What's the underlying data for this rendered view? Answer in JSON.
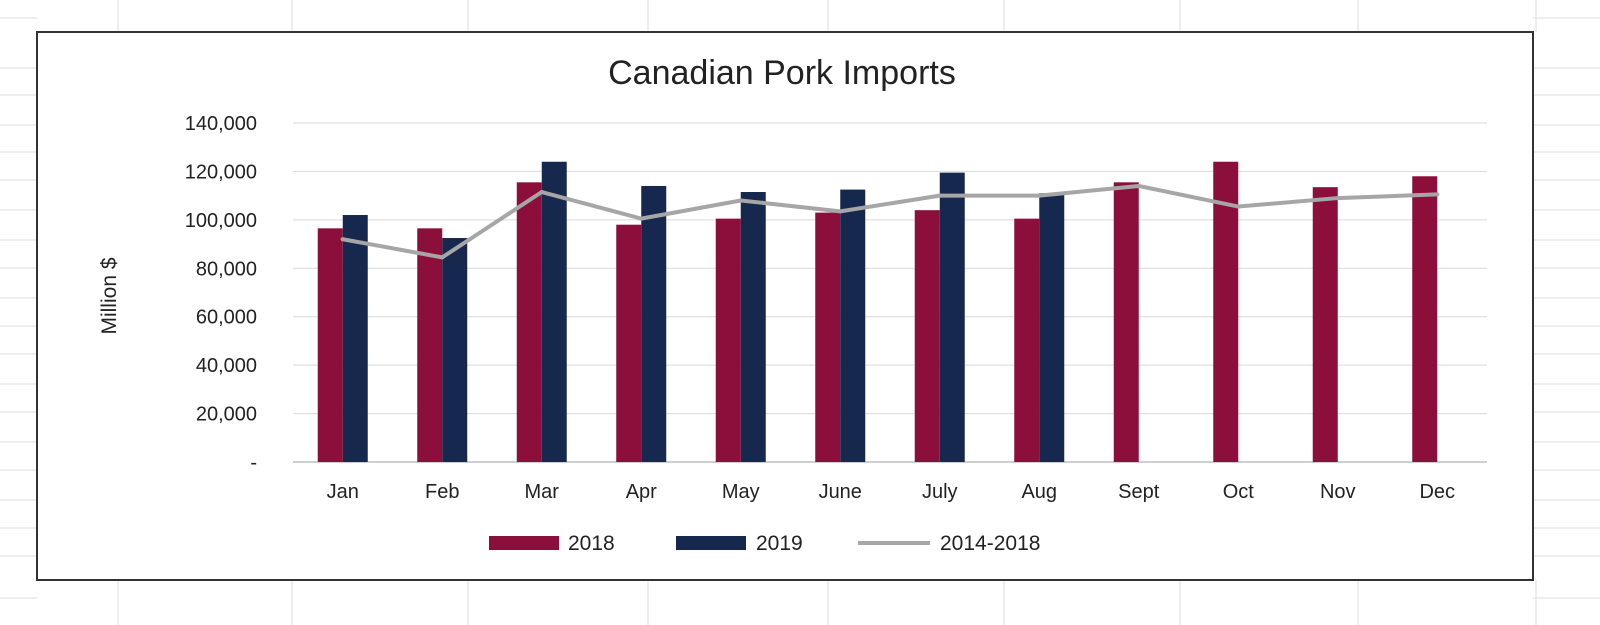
{
  "chart_data": {
    "type": "bar",
    "title": "Canadian Pork Imports",
    "xlabel": "",
    "ylabel": "Million $",
    "categories": [
      "Jan",
      "Feb",
      "Mar",
      "Apr",
      "May",
      "June",
      "July",
      "Aug",
      "Sept",
      "Oct",
      "Nov",
      "Dec"
    ],
    "ylim": [
      0,
      140000
    ],
    "yticks": [
      0,
      20000,
      40000,
      60000,
      80000,
      100000,
      120000,
      140000
    ],
    "ytick_labels": [
      "-",
      "20,000",
      "40,000",
      "60,000",
      "80,000",
      "100,000",
      "120,000",
      "140,000"
    ],
    "grid": true,
    "legend_position": "bottom",
    "series": [
      {
        "name": "2018",
        "kind": "bar",
        "color": "#8b0f3a",
        "values": [
          96500,
          96500,
          115500,
          98000,
          100500,
          103000,
          104000,
          100500,
          115500,
          124000,
          113500,
          118000
        ]
      },
      {
        "name": "2019",
        "kind": "bar",
        "color": "#16284e",
        "values": [
          102000,
          92500,
          124000,
          114000,
          111500,
          112500,
          119500,
          111000,
          null,
          null,
          null,
          null
        ]
      },
      {
        "name": "2014-2018",
        "kind": "line",
        "color": "#a6a6a6",
        "values": [
          92000,
          84500,
          111500,
          100500,
          108000,
          103500,
          110000,
          110000,
          114000,
          105500,
          109000,
          110500
        ]
      }
    ]
  }
}
